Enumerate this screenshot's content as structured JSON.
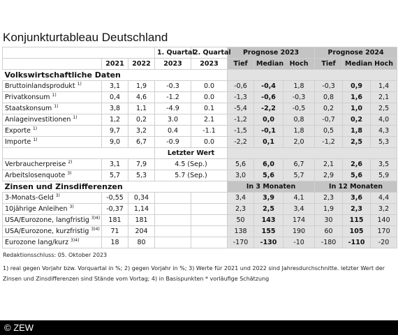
{
  "title": "Konjunkturtableau Deutschland",
  "header": {
    "row1": {
      "q1": "1. Quartal",
      "q2": "2. Quartal",
      "p2023": "Prognose 2023",
      "p2024": "Prognose 2024"
    },
    "row2": [
      "2021",
      "2022",
      "2023",
      "2023",
      "Tief",
      "Median",
      "Hoch",
      "Tief",
      "Median",
      "Hoch"
    ]
  },
  "sections": [
    {
      "title": "Volkswirtschaftliche Daten",
      "rows": [
        {
          "label": "Bruttoinlandsprodukt",
          "note": "1)",
          "y2021": "3,1",
          "y2022": "1,9",
          "q1": "-0.3",
          "q2": "0.0",
          "p2023": [
            "-0,6",
            "-0,4",
            "1,8"
          ],
          "p2024": [
            "-0,3",
            "0,9",
            "1,4"
          ]
        },
        {
          "label": "Privatkonsum",
          "note": "1)",
          "y2021": "0,4",
          "y2022": "4,6",
          "q1": "-1.2",
          "q2": "0.0",
          "p2023": [
            "-1,3",
            "-0,6",
            "-0,3"
          ],
          "p2024": [
            "0,8",
            "1,6",
            "2,1"
          ]
        },
        {
          "label": "Staatskonsum",
          "note": "1)",
          "y2021": "3,8",
          "y2022": "1,1",
          "q1": "-4.9",
          "q2": "0.1",
          "p2023": [
            "-5,4",
            "-2,2",
            "-0,5"
          ],
          "p2024": [
            "0,2",
            "1,0",
            "2,5"
          ]
        },
        {
          "label": "Anlageinvestitionen",
          "note": "1)",
          "y2021": "1,2",
          "y2022": "0,2",
          "q1": "3.0",
          "q2": "2.1",
          "p2023": [
            "-1,2",
            "0,0",
            "0,8"
          ],
          "p2024": [
            "-0,7",
            "0,2",
            "4,0"
          ]
        },
        {
          "label": "Exporte",
          "note": "1)",
          "y2021": "9,7",
          "y2022": "3,2",
          "q1": "0.4",
          "q2": "-1.1",
          "p2023": [
            "-1,5",
            "-0,1",
            "1,8"
          ],
          "p2024": [
            "0,5",
            "1,8",
            "4,3"
          ]
        },
        {
          "label": "Importe",
          "note": "1)",
          "y2021": "9,0",
          "y2022": "6,7",
          "q1": "-0.9",
          "q2": "0.0",
          "p2023": [
            "-2,2",
            "0,1",
            "2,0"
          ],
          "p2024": [
            "-1,2",
            "2,5",
            "5,3"
          ]
        }
      ],
      "latest_header": "Letzter Wert",
      "rows2": [
        {
          "label": "Verbraucherpreise",
          "note": "2)",
          "y2021": "3,1",
          "y2022": "7,9",
          "latest": "4.5 (Sep.)",
          "p2023": [
            "5,6",
            "6,0",
            "6,7"
          ],
          "p2024": [
            "2,1",
            "2,6",
            "3,5"
          ]
        },
        {
          "label": "Arbeitslosenquote",
          "note": "3)",
          "y2021": "5,7",
          "y2022": "5,3",
          "latest": "5.7 (Sep.)",
          "p2023": [
            "3,0",
            "5,6",
            "5,7"
          ],
          "p2024": [
            "2,9",
            "5,6",
            "5,9"
          ]
        }
      ]
    },
    {
      "title": "Zinsen und Zinsdifferenzen",
      "h2023": "In 3 Monaten",
      "h2024": "In 12 Monaten",
      "rows": [
        {
          "label": "3-Monats-Geld",
          "note": "3)",
          "y2021": "-0,55",
          "y2022": "0,34",
          "p2023": [
            "3,4",
            "3,9",
            "4,1"
          ],
          "p2024": [
            "2,3",
            "3,6",
            "4,4"
          ]
        },
        {
          "label": "10jährige Anleihen",
          "note": "3)",
          "y2021": "-0,37",
          "y2022": "1,14",
          "p2023": [
            "2,3",
            "2,5",
            "3,4"
          ],
          "p2024": [
            "1,9",
            "2,3",
            "3,2"
          ]
        },
        {
          "label": "USA/Eurozone, langfristig",
          "note": "3)4)",
          "y2021": "181",
          "y2022": "181",
          "p2023": [
            "50",
            "143",
            "174"
          ],
          "p2024": [
            "30",
            "115",
            "140"
          ]
        },
        {
          "label": "USA/Eurozone, kurzfristig",
          "note": "3)4)",
          "y2021": "71",
          "y2022": "204",
          "p2023": [
            "138",
            "155",
            "190"
          ],
          "p2024": [
            "60",
            "105",
            "170"
          ]
        },
        {
          "label": "Eurozone lang/kurz",
          "note": "3)4)",
          "y2021": "18",
          "y2022": "80",
          "p2023": [
            "-170",
            "-130",
            "-10"
          ],
          "p2024": [
            "-180",
            "-110",
            "-20"
          ]
        }
      ]
    }
  ],
  "footer": {
    "deadline": "Redaktionsschluss: 05. Oktober 2023",
    "notes": "1) real gegen Vorjahr bzw. Vorquartal in %; 2) gegen Vorjahr in %; 3) Werte für 2021 und 2022 sind Jahresdurchschnitte. letzter Wert der Zinsen und Zinsdifferenzen sind Stände vom Vortag; 4) in Basispunkten * vorläufige Schätzung",
    "copyright": "© ZEW"
  }
}
